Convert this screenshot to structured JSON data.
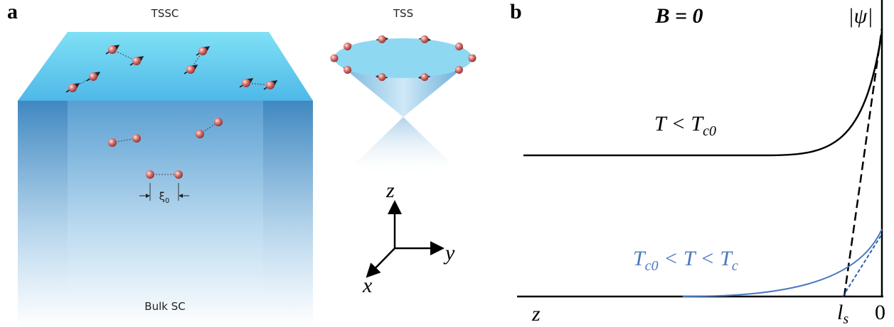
{
  "panel_a": {
    "label": "a",
    "top_label": "TSSC",
    "cone_label": "TSS",
    "coherence": {
      "text": "ξ",
      "sub": "0"
    },
    "bottom_label": "Bulk SC",
    "axes": {
      "z": "z",
      "y": "y",
      "x": "x"
    }
  },
  "panel_b": {
    "label": "b",
    "field": "B = 0",
    "order_parameter": "|ψ|",
    "low_T": [
      {
        "text": "T < T",
        "sub": "c0"
      }
    ],
    "mid_T": [
      {
        "text": "T",
        "sub": "c0"
      },
      {
        "text": " < T < T",
        "sub": "c"
      }
    ],
    "x_axis_label": "z",
    "length": {
      "text": "l",
      "sub": "s"
    },
    "origin": "0"
  }
}
